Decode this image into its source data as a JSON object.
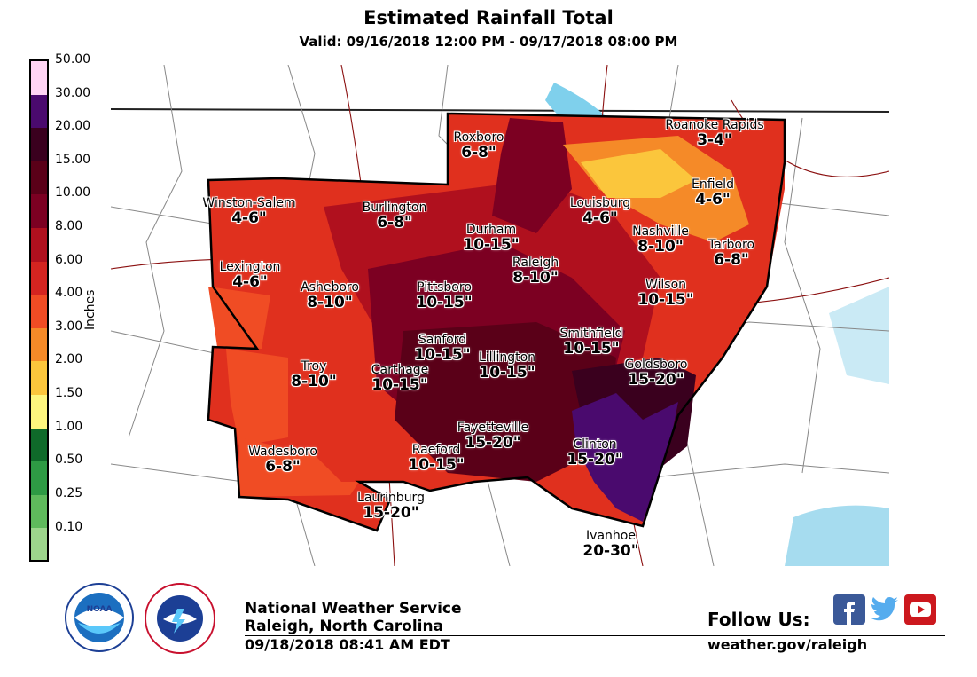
{
  "header": {
    "title": "Estimated Rainfall Total",
    "subtitle": "Valid: 09/16/2018 12:00 PM - 09/17/2018 08:00 PM"
  },
  "legend": {
    "unit": "Inches",
    "ticks": [
      "50.00",
      "30.00",
      "20.00",
      "15.00",
      "10.00",
      "8.00",
      "6.00",
      "4.00",
      "3.00",
      "2.00",
      "1.50",
      "1.00",
      "0.50",
      "0.25",
      "0.10"
    ],
    "colors_top_to_bottom": [
      "#ffd4f4",
      "#4a0a6e",
      "#3a001e",
      "#5a0018",
      "#7c0022",
      "#b0101e",
      "#d42420",
      "#f04c24",
      "#f58a28",
      "#fbc63c",
      "#fdf67e",
      "#0f6a2a",
      "#2e9a44",
      "#5fba5c",
      "#9dd68c",
      "#cde8c0"
    ]
  },
  "map_labels": [
    {
      "name": "Roxboro",
      "amount": "6-8\""
    },
    {
      "name": "Roanoke Rapids",
      "amount": "3-4\""
    },
    {
      "name": "Winston-Salem",
      "amount": "4-6\""
    },
    {
      "name": "Burlington",
      "amount": "6-8\""
    },
    {
      "name": "Durham",
      "amount": "10-15\""
    },
    {
      "name": "Louisburg",
      "amount": "4-6\""
    },
    {
      "name": "Enfield",
      "amount": "4-6\""
    },
    {
      "name": "Nashville",
      "amount": "8-10\""
    },
    {
      "name": "Tarboro",
      "amount": "6-8\""
    },
    {
      "name": "Lexington",
      "amount": "4-6\""
    },
    {
      "name": "Asheboro",
      "amount": "8-10\""
    },
    {
      "name": "Pittsboro",
      "amount": "10-15\""
    },
    {
      "name": "Raleigh",
      "amount": "8-10\""
    },
    {
      "name": "Wilson",
      "amount": "10-15\""
    },
    {
      "name": "Sanford",
      "amount": "10-15\""
    },
    {
      "name": "Smithfield",
      "amount": "10-15\""
    },
    {
      "name": "Troy",
      "amount": "8-10\""
    },
    {
      "name": "Carthage",
      "amount": "10-15\""
    },
    {
      "name": "Lillington",
      "amount": "10-15\""
    },
    {
      "name": "Goldsboro",
      "amount": "15-20\""
    },
    {
      "name": "Fayetteville",
      "amount": "15-20\""
    },
    {
      "name": "Clinton",
      "amount": "15-20\""
    },
    {
      "name": "Wadesboro",
      "amount": "6-8\""
    },
    {
      "name": "Raeford",
      "amount": "10-15\""
    },
    {
      "name": "Laurinburg",
      "amount": "15-20\""
    },
    {
      "name": "Ivanhoe",
      "amount": "20-30\""
    }
  ],
  "footer": {
    "org_name": "National Weather Service",
    "office": "Raleigh, North Carolina",
    "issued": "09/18/2018 08:41 AM EDT",
    "follow_label": "Follow Us:",
    "website": "weather.gov/raleigh",
    "noaa_logo_text": "NOAA",
    "noaa_ring_text": "NATIONAL OCEANIC AND ATMOSPHERIC ADMINISTRATION · U.S. DEPARTMENT OF COMMERCE",
    "nws_ring_text": "NATIONAL WEATHER SERVICE"
  },
  "social": [
    {
      "icon": "facebook-icon",
      "color": "#3b5998"
    },
    {
      "icon": "twitter-icon",
      "color": "#55acee"
    },
    {
      "icon": "youtube-icon",
      "color": "#cc181e"
    }
  ]
}
